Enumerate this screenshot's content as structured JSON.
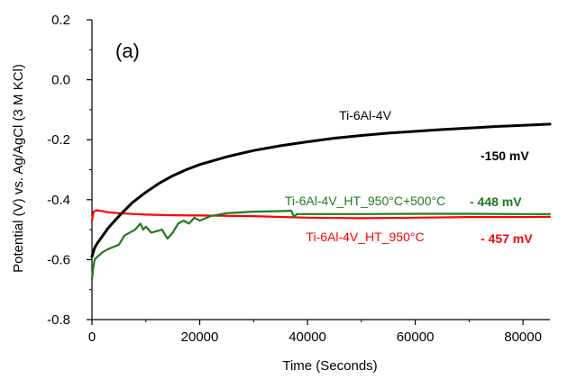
{
  "chart_data": {
    "type": "line",
    "panel_label": "(a)",
    "xlabel": "Time (Seconds)",
    "ylabel": "Potential (V) vs. Ag/AgCl (3 M KCl)",
    "xlim": [
      0,
      85000
    ],
    "ylim": [
      -0.8,
      0.2
    ],
    "xticks": [
      0,
      20000,
      40000,
      60000,
      80000
    ],
    "yticks": [
      0.2,
      0.0,
      -0.2,
      -0.4,
      -0.6,
      -0.8
    ],
    "xtick_labels": [
      "0",
      "20000",
      "40000",
      "60000",
      "80000"
    ],
    "ytick_labels": [
      "0.2",
      "0.0",
      "-0.2",
      "-0.4",
      "-0.6",
      "-0.8"
    ],
    "grid": false,
    "series": [
      {
        "name": "Ti-6Al-4V",
        "color": "#000000",
        "end_label": "-150 mV",
        "x": [
          0,
          500,
          1000,
          2000,
          3000,
          5000,
          7500,
          10000,
          12500,
          15000,
          17500,
          20000,
          25000,
          30000,
          35000,
          40000,
          45000,
          50000,
          55000,
          60000,
          65000,
          70000,
          75000,
          80000,
          85000
        ],
        "y": [
          -0.59,
          -0.56,
          -0.545,
          -0.52,
          -0.495,
          -0.455,
          -0.41,
          -0.375,
          -0.345,
          -0.32,
          -0.3,
          -0.283,
          -0.257,
          -0.236,
          -0.22,
          -0.207,
          -0.195,
          -0.186,
          -0.178,
          -0.172,
          -0.166,
          -0.161,
          -0.156,
          -0.152,
          -0.148
        ]
      },
      {
        "name": "Ti-6Al-4V_HT_950°C+500°C",
        "color": "#1f7a1f",
        "end_label": "- 448 mV",
        "x": [
          0,
          200,
          500,
          1000,
          2000,
          3000,
          5000,
          6000,
          7000,
          8000,
          9000,
          9500,
          10000,
          11000,
          12000,
          13000,
          14000,
          15000,
          16000,
          17000,
          18000,
          19000,
          20000,
          22000,
          25000,
          30000,
          35000,
          37000,
          37500,
          38000,
          40000,
          50000,
          60000,
          70000,
          80000,
          85000
        ],
        "y": [
          -0.67,
          -0.63,
          -0.6,
          -0.59,
          -0.575,
          -0.565,
          -0.55,
          -0.52,
          -0.51,
          -0.5,
          -0.48,
          -0.5,
          -0.49,
          -0.51,
          -0.505,
          -0.5,
          -0.53,
          -0.51,
          -0.48,
          -0.47,
          -0.48,
          -0.46,
          -0.47,
          -0.455,
          -0.445,
          -0.44,
          -0.438,
          -0.437,
          -0.458,
          -0.448,
          -0.448,
          -0.448,
          -0.447,
          -0.447,
          -0.448,
          -0.448
        ]
      },
      {
        "name": "Ti-6Al-4V_HT_950°C",
        "color": "#ff0000",
        "end_label": "- 457 mV",
        "x": [
          0,
          300,
          800,
          1500,
          3000,
          5000,
          8000,
          10000,
          15000,
          20000,
          30000,
          40000,
          50000,
          60000,
          70000,
          80000,
          85000
        ],
        "y": [
          -0.47,
          -0.44,
          -0.435,
          -0.437,
          -0.442,
          -0.445,
          -0.448,
          -0.45,
          -0.452,
          -0.453,
          -0.455,
          -0.46,
          -0.462,
          -0.46,
          -0.458,
          -0.458,
          -0.457
        ]
      }
    ]
  }
}
